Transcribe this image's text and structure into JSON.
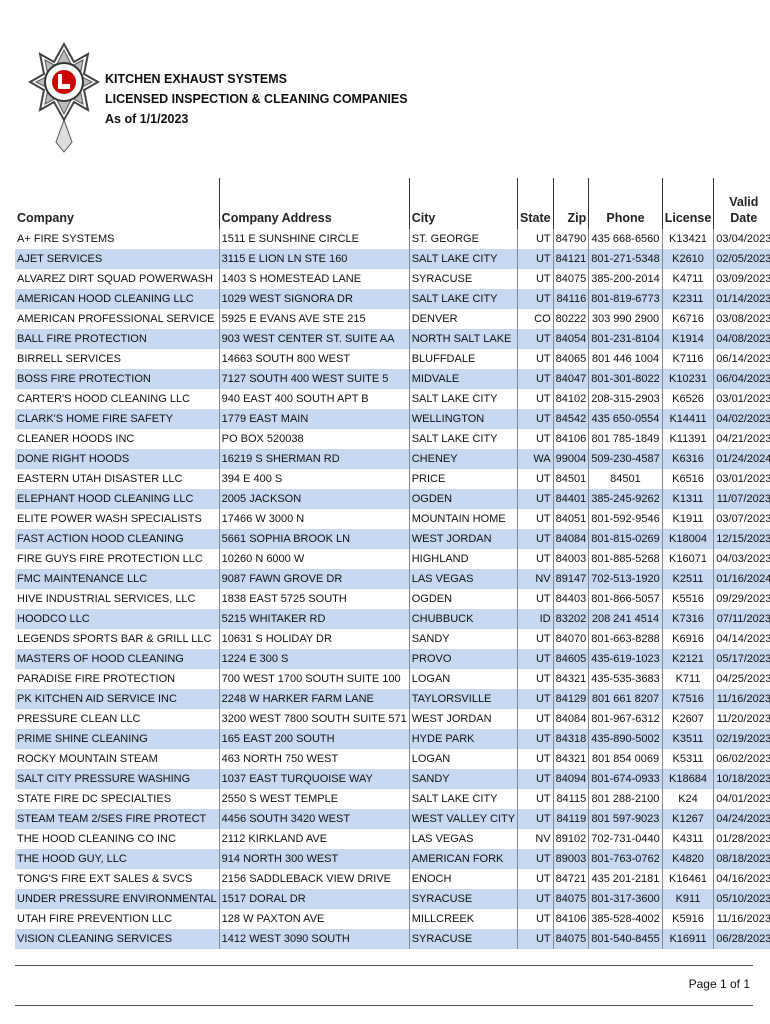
{
  "header": {
    "title": [
      "KITCHEN EXHAUST SYSTEMS",
      "LICENSED INSPECTION & CLEANING COMPANIES",
      "As of 1/1/2023"
    ]
  },
  "table": {
    "columns": [
      "Company",
      "Company Address",
      "City",
      "State",
      "Zip",
      "Phone",
      "License",
      "Valid Date"
    ],
    "rows": [
      [
        "A+ FIRE SYSTEMS",
        "1511 E SUNSHINE CIRCLE",
        "ST. GEORGE",
        "UT",
        "84790",
        "435 668-6560",
        "K13421",
        "03/04/2023"
      ],
      [
        "AJET SERVICES",
        "3115 E LION LN STE 160",
        "SALT LAKE CITY",
        "UT",
        "84121",
        "801-271-5348",
        "K2610",
        "02/05/2023"
      ],
      [
        "ALVAREZ DIRT SQUAD POWERWASH",
        "1403 S HOMESTEAD LANE",
        "SYRACUSE",
        "UT",
        "84075",
        "385-200-2014",
        "K4711",
        "03/09/2023"
      ],
      [
        "AMERICAN HOOD CLEANING LLC",
        "1029 WEST SIGNORA DR",
        "SALT LAKE CITY",
        "UT",
        "84116",
        "801-819-6773",
        "K2311",
        "01/14/2023"
      ],
      [
        "AMERICAN PROFESSIONAL SERVICE",
        "5925 E EVANS AVE STE 215",
        "DENVER",
        "CO",
        "80222",
        "303 990 2900",
        "K6716",
        "03/08/2023"
      ],
      [
        "BALL FIRE PROTECTION",
        "903 WEST CENTER ST. SUITE AA",
        "NORTH SALT LAKE",
        "UT",
        "84054",
        "801-231-8104",
        "K1914",
        "04/08/2023"
      ],
      [
        "BIRRELL SERVICES",
        "14663 SOUTH 800 WEST",
        "BLUFFDALE",
        "UT",
        "84065",
        "801 446 1004",
        "K7116",
        "06/14/2023"
      ],
      [
        "BOSS FIRE PROTECTION",
        "7127 SOUTH 400 WEST SUITE 5",
        "MIDVALE",
        "UT",
        "84047",
        "801-301-8022",
        "K10231",
        "06/04/2023"
      ],
      [
        "CARTER'S HOOD CLEANING LLC",
        "940 EAST 400 SOUTH APT B",
        "SALT LAKE CITY",
        "UT",
        "84102",
        "208-315-2903",
        "K6526",
        "03/01/2023"
      ],
      [
        "CLARK'S HOME FIRE SAFETY",
        "1779 EAST MAIN",
        "WELLINGTON",
        "UT",
        "84542",
        "435 650-0554",
        "K14411",
        "04/02/2023"
      ],
      [
        "CLEANER HOODS INC",
        "PO BOX 520038",
        "SALT LAKE CITY",
        "UT",
        "84106",
        "801 785-1849",
        "K11391",
        "04/21/2023"
      ],
      [
        "DONE RIGHT HOODS",
        "16219 S SHERMAN RD",
        "CHENEY",
        "WA",
        "99004",
        "509-230-4587",
        "K6316",
        "01/24/2024"
      ],
      [
        "EASTERN UTAH DISASTER LLC",
        "394 E 400 S",
        "PRICE",
        "UT",
        "84501",
        "84501",
        "K6516",
        "03/01/2023"
      ],
      [
        "ELEPHANT HOOD CLEANING LLC",
        "2005 JACKSON",
        "OGDEN",
        "UT",
        "84401",
        "385-245-9262",
        "K1311",
        "11/07/2023"
      ],
      [
        "ELITE POWER WASH SPECIALISTS",
        "17466 W 3000 N",
        "MOUNTAIN HOME",
        "UT",
        "84051",
        "801-592-9546",
        "K1911",
        "03/07/2023"
      ],
      [
        "FAST ACTION HOOD CLEANING",
        "5661 SOPHIA BROOK LN",
        "WEST JORDAN",
        "UT",
        "84084",
        "801-815-0269",
        "K18004",
        "12/15/2023"
      ],
      [
        "FIRE GUYS FIRE PROTECTION LLC",
        "10260 N 6000 W",
        "HIGHLAND",
        "UT",
        "84003",
        "801-885-5268",
        "K16071",
        "04/03/2023"
      ],
      [
        "FMC MAINTENANCE LLC",
        "9087 FAWN GROVE DR",
        "LAS VEGAS",
        "NV",
        "89147",
        "702-513-1920",
        "K2511",
        "01/16/2024"
      ],
      [
        "HIVE INDUSTRIAL SERVICES, LLC",
        "1838 EAST 5725 SOUTH",
        "OGDEN",
        "UT",
        "84403",
        "801-866-5057",
        "K5516",
        "09/29/2023"
      ],
      [
        "HOODCO LLC",
        "5215 WHITAKER RD",
        "CHUBBUCK",
        "ID",
        "83202",
        "208 241 4514",
        "K7316",
        "07/11/2023"
      ],
      [
        "LEGENDS SPORTS BAR & GRILL LLC",
        "10631 S HOLIDAY DR",
        "SANDY",
        "UT",
        "84070",
        "801-663-8288",
        "K6916",
        "04/14/2023"
      ],
      [
        "MASTERS OF HOOD CLEANING",
        "1224 E 300 S",
        "PROVO",
        "UT",
        "84605",
        "435-619-1023",
        "K2121",
        "05/17/2023"
      ],
      [
        "PARADISE FIRE PROTECTION",
        "700 WEST 1700 SOUTH SUITE 100",
        "LOGAN",
        "UT",
        "84321",
        "435-535-3683",
        "K711",
        "04/25/2023"
      ],
      [
        "PK KITCHEN AID SERVICE INC",
        "2248 W HARKER FARM LANE",
        "TAYLORSVILLE",
        "UT",
        "84129",
        "801 661 8207",
        "K7516",
        "11/16/2023"
      ],
      [
        "PRESSURE CLEAN LLC",
        "3200 WEST 7800 SOUTH SUITE 571",
        "WEST JORDAN",
        "UT",
        "84084",
        "801-967-6312",
        "K2607",
        "11/20/2023"
      ],
      [
        "PRIME SHINE CLEANING",
        "165 EAST 200 SOUTH",
        "HYDE PARK",
        "UT",
        "84318",
        "435-890-5002",
        "K3511",
        "02/19/2023"
      ],
      [
        "ROCKY MOUNTAIN STEAM",
        "463 NORTH 750 WEST",
        "LOGAN",
        "UT",
        "84321",
        "801 854 0069",
        "K5311",
        "06/02/2023"
      ],
      [
        "SALT CITY PRESSURE WASHING",
        "1037 EAST TURQUOISE WAY",
        "SANDY",
        "UT",
        "84094",
        "801-674-0933",
        "K18684",
        "10/18/2023"
      ],
      [
        "STATE FIRE DC SPECIALTIES",
        "2550 S WEST TEMPLE",
        "SALT LAKE CITY",
        "UT",
        "84115",
        "801 288-2100",
        "K24",
        "04/01/2023"
      ],
      [
        "STEAM TEAM 2/SES FIRE PROTECT",
        "4456 SOUTH 3420 WEST",
        "WEST VALLEY CITY",
        "UT",
        "84119",
        "801 597-9023",
        "K1267",
        "04/24/2023"
      ],
      [
        "THE HOOD CLEANING CO INC",
        "2112 KIRKLAND AVE",
        "LAS VEGAS",
        "NV",
        "89102",
        "702-731-0440",
        "K4311",
        "01/28/2023"
      ],
      [
        "THE HOOD GUY, LLC",
        "914 NORTH 300 WEST",
        "AMERICAN FORK",
        "UT",
        "89003",
        "801-763-0762",
        "K4820",
        "08/18/2023"
      ],
      [
        "TONG'S FIRE EXT SALES & SVCS",
        "2156 SADDLEBACK VIEW DRIVE",
        "ENOCH",
        "UT",
        "84721",
        "435 201-2181",
        "K16461",
        "04/16/2023"
      ],
      [
        "UNDER PRESSURE ENVIRONMENTAL",
        "1517 DORAL DR",
        "SYRACUSE",
        "UT",
        "84075",
        "801-317-3600",
        "K911",
        "05/10/2023"
      ],
      [
        "UTAH FIRE PREVENTION LLC",
        "128 W PAXTON AVE",
        "MILLCREEK",
        "UT",
        "84106",
        "385-528-4002",
        "K5916",
        "11/16/2023"
      ],
      [
        "VISION CLEANING SERVICES",
        "1412 WEST 3090 SOUTH",
        "SYRACUSE",
        "UT",
        "84075",
        "801-540-8455",
        "K16911",
        "06/28/2023"
      ]
    ]
  },
  "footer": {
    "page": "Page 1 of 1"
  }
}
